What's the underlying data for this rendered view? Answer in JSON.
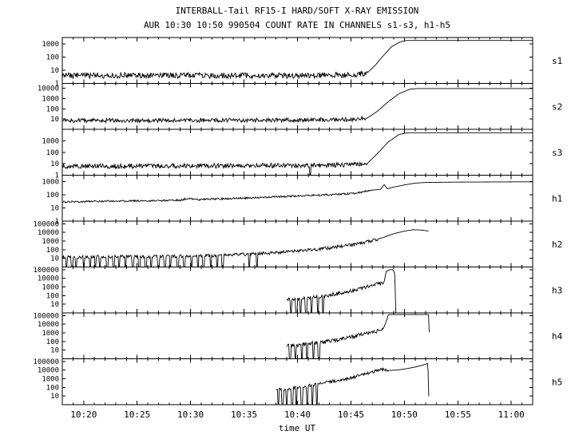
{
  "header": {
    "line1": "INTERBALL-Tail RF15-I HARD/SOFT X-RAY EMISSION",
    "line2": "AUR 10:30 10:50 990504  COUNT RATE IN CHANNELS s1-s3, h1-h5"
  },
  "axis": {
    "xlabel": "time UT"
  },
  "colors": {
    "foreground": "#000000",
    "background": "#ffffff"
  },
  "chart_data": {
    "type": "line",
    "title": "INTERBALL-Tail RF15-I HARD/SOFT X-RAY EMISSION",
    "subtitle": "AUR 10:30 10:50 990504  COUNT RATE IN CHANNELS s1-s3, h1-h5",
    "xlabel": "time UT",
    "x_range_minutes": [
      618,
      662
    ],
    "x_ticks": [
      {
        "t": 620,
        "label": "10:20"
      },
      {
        "t": 625,
        "label": "10:25"
      },
      {
        "t": 630,
        "label": "10:30"
      },
      {
        "t": 635,
        "label": "10:35"
      },
      {
        "t": 640,
        "label": "10:40"
      },
      {
        "t": 645,
        "label": "10:45"
      },
      {
        "t": 650,
        "label": "10:50"
      },
      {
        "t": 655,
        "label": "10:55"
      },
      {
        "t": 660,
        "label": "11:00"
      }
    ],
    "panels": [
      {
        "id": "s1",
        "label": "s1",
        "ylim": [
          1,
          3000
        ],
        "yticks": [
          1,
          10,
          100,
          1000
        ],
        "t_start": 618,
        "t_end": 662,
        "noise": {
          "t0": 618,
          "t1": 646.5,
          "amp": 0.22
        },
        "dropouts": [],
        "points": [
          [
            618,
            4
          ],
          [
            640,
            4
          ],
          [
            645,
            4.5
          ],
          [
            646.5,
            6
          ],
          [
            647.3,
            25
          ],
          [
            648,
            120
          ],
          [
            648.8,
            600
          ],
          [
            649.6,
            1400
          ],
          [
            650.2,
            1800
          ],
          [
            662,
            1800
          ]
        ]
      },
      {
        "id": "s2",
        "label": "s2",
        "ylim": [
          1,
          30000
        ],
        "yticks": [
          10,
          100,
          1000,
          10000
        ],
        "t_start": 618,
        "t_end": 662,
        "noise": {
          "t0": 618,
          "t1": 646.5,
          "amp": 0.2
        },
        "dropouts": [],
        "points": [
          [
            618,
            7
          ],
          [
            640,
            8
          ],
          [
            645,
            9
          ],
          [
            646.5,
            12
          ],
          [
            647.5,
            60
          ],
          [
            648.5,
            500
          ],
          [
            649.5,
            3000
          ],
          [
            650.5,
            8000
          ],
          [
            651.2,
            9500
          ],
          [
            662,
            9500
          ]
        ]
      },
      {
        "id": "s3",
        "label": "s3",
        "ylim": [
          1,
          10000
        ],
        "yticks": [
          1,
          10,
          100,
          1000
        ],
        "t_start": 618,
        "t_end": 662,
        "noise": {
          "t0": 618,
          "t1": 646.5,
          "amp": 0.2
        },
        "dropouts": [
          641.2
        ],
        "points": [
          [
            618,
            6
          ],
          [
            640,
            7
          ],
          [
            645,
            8
          ],
          [
            646.5,
            10
          ],
          [
            647.5,
            80
          ],
          [
            648.5,
            800
          ],
          [
            649.5,
            3500
          ],
          [
            650.3,
            5000
          ],
          [
            662,
            5000
          ]
        ]
      },
      {
        "id": "h1",
        "label": "h1",
        "ylim": [
          1,
          3000
        ],
        "yticks": [
          1,
          10,
          100,
          1000
        ],
        "t_start": 618,
        "t_end": 662,
        "noise": {
          "t0": 618,
          "t1": 647,
          "amp": 0.07
        },
        "dropouts": [],
        "points": [
          [
            618,
            28
          ],
          [
            622,
            32
          ],
          [
            626,
            35
          ],
          [
            629,
            38
          ],
          [
            629.8,
            55
          ],
          [
            630.6,
            42
          ],
          [
            633,
            50
          ],
          [
            636,
            60
          ],
          [
            639,
            75
          ],
          [
            642,
            90
          ],
          [
            644,
            110
          ],
          [
            645.5,
            130
          ],
          [
            646.3,
            180
          ],
          [
            647,
            220
          ],
          [
            647.8,
            260
          ],
          [
            648.1,
            600
          ],
          [
            648.4,
            280
          ],
          [
            649,
            380
          ],
          [
            650,
            550
          ],
          [
            651,
            750
          ],
          [
            652,
            850
          ],
          [
            655,
            900
          ],
          [
            662,
            950
          ]
        ]
      },
      {
        "id": "h2",
        "label": "h2",
        "ylim": [
          1,
          200000
        ],
        "yticks": [
          10,
          100,
          1000,
          10000,
          100000
        ],
        "t_start": 618,
        "t_end": 652.3,
        "noise": {
          "t0": 618,
          "t1": 647.5,
          "amp": 0.18
        },
        "dropouts": [
          618.4,
          618.9,
          619.3,
          620.0,
          620.6,
          621.1,
          621.5,
          622.2,
          622.8,
          623.3,
          623.9,
          624.6,
          625.2,
          625.8,
          626.3,
          627.0,
          627.6,
          628.1,
          628.8,
          629.4,
          630.1,
          630.7,
          631.2,
          631.9,
          632.5,
          633.0,
          635.5,
          636.2
        ],
        "points": [
          [
            618,
            14
          ],
          [
            625,
            16
          ],
          [
            630,
            18
          ],
          [
            634,
            25
          ],
          [
            638,
            45
          ],
          [
            641,
            90
          ],
          [
            643,
            160
          ],
          [
            645,
            350
          ],
          [
            646,
            600
          ],
          [
            647,
            1100
          ],
          [
            648,
            2500
          ],
          [
            649,
            7000
          ],
          [
            650,
            14000
          ],
          [
            650.8,
            20000
          ],
          [
            651.5,
            19000
          ],
          [
            652.3,
            14000
          ]
        ]
      },
      {
        "id": "h3",
        "label": "h3",
        "ylim": [
          1,
          200000
        ],
        "yticks": [
          10,
          100,
          1000,
          10000,
          100000
        ],
        "t_start": 639,
        "t_end": 649.2,
        "noise": {
          "t0": 639,
          "t1": 648,
          "amp": 0.22
        },
        "dropouts": [
          639.4,
          639.9,
          640.3,
          640.8,
          641.3,
          641.9,
          642.4
        ],
        "points": [
          [
            639,
            35
          ],
          [
            640,
            45
          ],
          [
            641,
            60
          ],
          [
            642,
            80
          ],
          [
            643,
            120
          ],
          [
            644,
            200
          ],
          [
            645,
            350
          ],
          [
            646,
            700
          ],
          [
            647,
            1400
          ],
          [
            647.8,
            2500
          ],
          [
            648.1,
            3500
          ],
          [
            648.3,
            60000
          ],
          [
            648.6,
            95000
          ],
          [
            648.9,
            100000
          ],
          [
            649.1,
            40000
          ],
          [
            649.2,
            1
          ]
        ]
      },
      {
        "id": "h4",
        "label": "h4",
        "ylim": [
          1,
          200000
        ],
        "yticks": [
          10,
          100,
          1000,
          10000,
          100000
        ],
        "t_start": 639,
        "t_end": 652.35,
        "noise": {
          "t0": 639,
          "t1": 648,
          "amp": 0.22
        },
        "dropouts": [
          639.3,
          639.8,
          640.4,
          640.9,
          641.5,
          642.0
        ],
        "points": [
          [
            639,
            30
          ],
          [
            640,
            40
          ],
          [
            641,
            55
          ],
          [
            642,
            75
          ],
          [
            643,
            110
          ],
          [
            644,
            180
          ],
          [
            645,
            320
          ],
          [
            646,
            600
          ],
          [
            647,
            1200
          ],
          [
            648,
            2500
          ],
          [
            648.3,
            20000
          ],
          [
            648.5,
            130000
          ],
          [
            652.3,
            130000
          ],
          [
            652.35,
            1
          ]
        ]
      },
      {
        "id": "h5",
        "label": "h5",
        "ylim": [
          1,
          200000
        ],
        "yticks": [
          10,
          100,
          1000,
          10000,
          100000
        ],
        "t_start": 638,
        "t_end": 652.3,
        "noise": {
          "t0": 638,
          "t1": 648.5,
          "amp": 0.18
        },
        "dropouts": [
          638.2,
          638.6,
          639.0,
          639.5,
          639.9,
          640.4,
          640.9,
          641.4,
          641.8
        ],
        "points": [
          [
            638,
            50
          ],
          [
            639,
            70
          ],
          [
            640,
            100
          ],
          [
            641,
            150
          ],
          [
            642,
            250
          ],
          [
            643,
            420
          ],
          [
            644,
            700
          ],
          [
            645,
            1300
          ],
          [
            646,
            2500
          ],
          [
            646.8,
            5000
          ],
          [
            647.3,
            8000
          ],
          [
            647.8,
            11000
          ],
          [
            648.2,
            12000
          ],
          [
            648.6,
            9000
          ],
          [
            649.3,
            10000
          ],
          [
            650,
            13000
          ],
          [
            651,
            22000
          ],
          [
            651.8,
            40000
          ],
          [
            652.2,
            60000
          ],
          [
            652.3,
            1
          ]
        ]
      }
    ]
  }
}
